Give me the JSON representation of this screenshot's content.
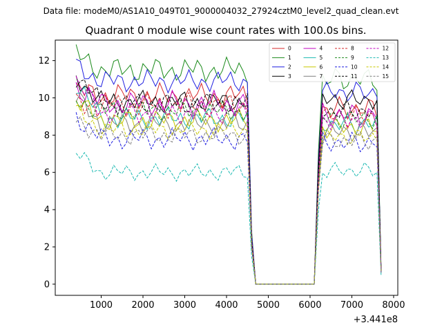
{
  "figure": {
    "suptitle": "Data file: modeM0/AS1A10_049T01_9000004032_27924cztM0_level2_quad_clean.evt"
  },
  "chart_data": {
    "type": "line",
    "title": "Quadrant 0 module wise count rates with 100.0s bins.",
    "xlabel": "",
    "ylabel": "",
    "x_offset_label": "+3.441e8",
    "xlim": [
      -100,
      8100
    ],
    "ylim": [
      -0.6,
      13.1
    ],
    "xticks": [
      1000,
      2000,
      3000,
      4000,
      5000,
      6000,
      7000,
      8000
    ],
    "yticks": [
      0,
      2,
      4,
      6,
      8,
      10,
      12
    ],
    "legend_position": "top-right",
    "legend_columns": 4,
    "x": [
      400,
      500,
      600,
      700,
      800,
      900,
      1000,
      1100,
      1200,
      1300,
      1400,
      1500,
      1600,
      1700,
      1800,
      1900,
      2000,
      2100,
      2200,
      2300,
      2400,
      2500,
      2600,
      2700,
      2800,
      2900,
      3000,
      3100,
      3200,
      3300,
      3400,
      3500,
      3600,
      3700,
      3800,
      3900,
      4000,
      4100,
      4200,
      4300,
      4400,
      4500,
      4600,
      4700,
      4800,
      4900,
      5000,
      5100,
      5200,
      5300,
      5400,
      5500,
      5600,
      5700,
      5800,
      5900,
      6000,
      6100,
      6200,
      6300,
      6400,
      6500,
      6600,
      6700,
      6800,
      6900,
      7000,
      7100,
      7200,
      7300,
      7400,
      7500,
      7600,
      7700
    ],
    "gaps": [
      [
        4700,
        6100
      ]
    ],
    "series": [
      {
        "name": "0",
        "color": "#d62728",
        "dash": "solid",
        "level": 10.1,
        "seg2": 9.4,
        "amp": 0.45,
        "start": 10.4,
        "phase": 1.1
      },
      {
        "name": "1",
        "color": "#1a8a1a",
        "dash": "solid",
        "level": 11.5,
        "seg2": 11.0,
        "amp": 0.45,
        "start": 12.3,
        "phase": 2.3
      },
      {
        "name": "2",
        "color": "#1f1fe0",
        "dash": "solid",
        "level": 10.9,
        "seg2": 10.3,
        "amp": 0.4,
        "start": 11.7,
        "phase": 0.4
      },
      {
        "name": "3",
        "color": "#000000",
        "dash": "solid",
        "level": 9.8,
        "seg2": 9.9,
        "amp": 0.4,
        "start": 11.1,
        "phase": 3.0
      },
      {
        "name": "4",
        "color": "#c000c0",
        "dash": "solid",
        "level": 9.7,
        "seg2": 9.1,
        "amp": 0.45,
        "start": 10.6,
        "phase": 1.7
      },
      {
        "name": "5",
        "color": "#17b8b0",
        "dash": "solid",
        "level": 8.9,
        "seg2": 8.6,
        "amp": 0.4,
        "start": 10.8,
        "phase": 4.2
      },
      {
        "name": "6",
        "color": "#c8c800",
        "dash": "solid",
        "level": 8.8,
        "seg2": 8.4,
        "amp": 0.4,
        "start": 9.8,
        "phase": 2.8
      },
      {
        "name": "7",
        "color": "#7f7f7f",
        "dash": "solid",
        "level": 8.6,
        "seg2": 8.2,
        "amp": 0.4,
        "start": 10.0,
        "phase": 5.1
      },
      {
        "name": "8",
        "color": "#d62728",
        "dash": "dashed",
        "level": 9.6,
        "seg2": 9.0,
        "amp": 0.45,
        "start": 9.6,
        "phase": 0.9
      },
      {
        "name": "9",
        "color": "#1a8a1a",
        "dash": "dashed",
        "level": 9.3,
        "seg2": 8.9,
        "amp": 0.4,
        "start": 9.9,
        "phase": 3.6
      },
      {
        "name": "10",
        "color": "#1f1fe0",
        "dash": "dashed",
        "level": 7.8,
        "seg2": 7.6,
        "amp": 0.4,
        "start": 9.0,
        "phase": 2.0
      },
      {
        "name": "11",
        "color": "#000000",
        "dash": "dashed",
        "level": 9.7,
        "seg2": 9.3,
        "amp": 0.4,
        "start": 11.2,
        "phase": 4.7
      },
      {
        "name": "12",
        "color": "#c000c0",
        "dash": "dashed",
        "level": 9.2,
        "seg2": 8.8,
        "amp": 0.4,
        "start": 10.9,
        "phase": 1.4
      },
      {
        "name": "13",
        "color": "#17b8b0",
        "dash": "dashed",
        "level": 6.0,
        "seg2": 6.1,
        "amp": 0.3,
        "start": 7.0,
        "phase": 3.3
      },
      {
        "name": "14",
        "color": "#c8c800",
        "dash": "dashed",
        "level": 8.3,
        "seg2": 7.9,
        "amp": 0.35,
        "start": 9.3,
        "phase": 0.2
      },
      {
        "name": "15",
        "color": "#7f7f7f",
        "dash": "dashed",
        "level": 8.0,
        "seg2": 7.7,
        "amp": 0.35,
        "start": 8.8,
        "phase": 5.5
      }
    ]
  }
}
